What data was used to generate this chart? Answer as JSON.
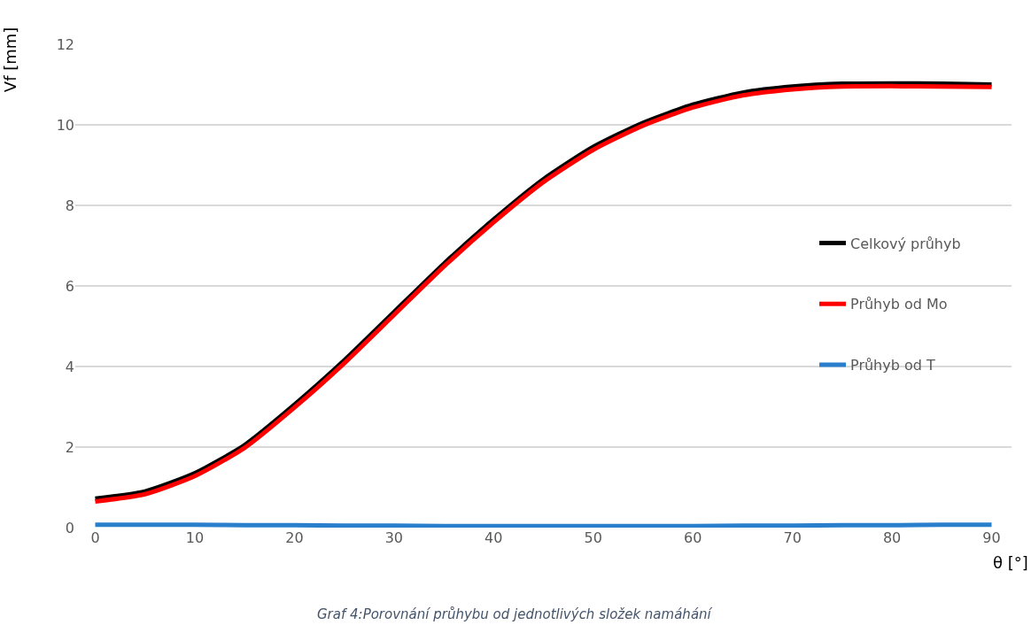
{
  "chart_data": {
    "type": "line",
    "xlabel": "θ [°]",
    "ylabel": "Vf [mm]",
    "x": [
      0,
      5,
      10,
      15,
      20,
      25,
      30,
      35,
      40,
      45,
      50,
      55,
      60,
      65,
      70,
      75,
      80,
      85,
      90
    ],
    "series": [
      {
        "name": "Celkový průhyb",
        "color": "#000000",
        "values": [
          0.72,
          0.9,
          1.35,
          2.05,
          3.05,
          4.15,
          5.35,
          6.55,
          7.65,
          8.65,
          9.45,
          10.05,
          10.5,
          10.8,
          10.95,
          11.02,
          11.03,
          11.02,
          11.0
        ]
      },
      {
        "name": "Průhyb od Mo",
        "color": "#ff0000",
        "values": [
          0.65,
          0.83,
          1.28,
          1.98,
          2.98,
          4.08,
          5.28,
          6.48,
          7.58,
          8.58,
          9.38,
          9.98,
          10.43,
          10.73,
          10.88,
          10.95,
          10.96,
          10.95,
          10.94
        ]
      },
      {
        "name": "Průhyb od T",
        "color": "#2a7fcc",
        "values": [
          0.07,
          0.07,
          0.07,
          0.06,
          0.06,
          0.05,
          0.05,
          0.04,
          0.04,
          0.04,
          0.04,
          0.04,
          0.04,
          0.05,
          0.05,
          0.06,
          0.06,
          0.07,
          0.07
        ]
      }
    ],
    "xlim": [
      -2,
      92
    ],
    "xticks": [
      0,
      10,
      20,
      30,
      40,
      50,
      60,
      70,
      80,
      90
    ],
    "ylim": [
      0,
      12
    ],
    "yticks": [
      0,
      2,
      4,
      6,
      8,
      10,
      12
    ],
    "grid": "y",
    "legend": "right",
    "marker": "none",
    "line_style": "solid",
    "annotations": [
      "Graf 4:Porovnání průhybu od jednotlivých složek namáhání"
    ]
  }
}
